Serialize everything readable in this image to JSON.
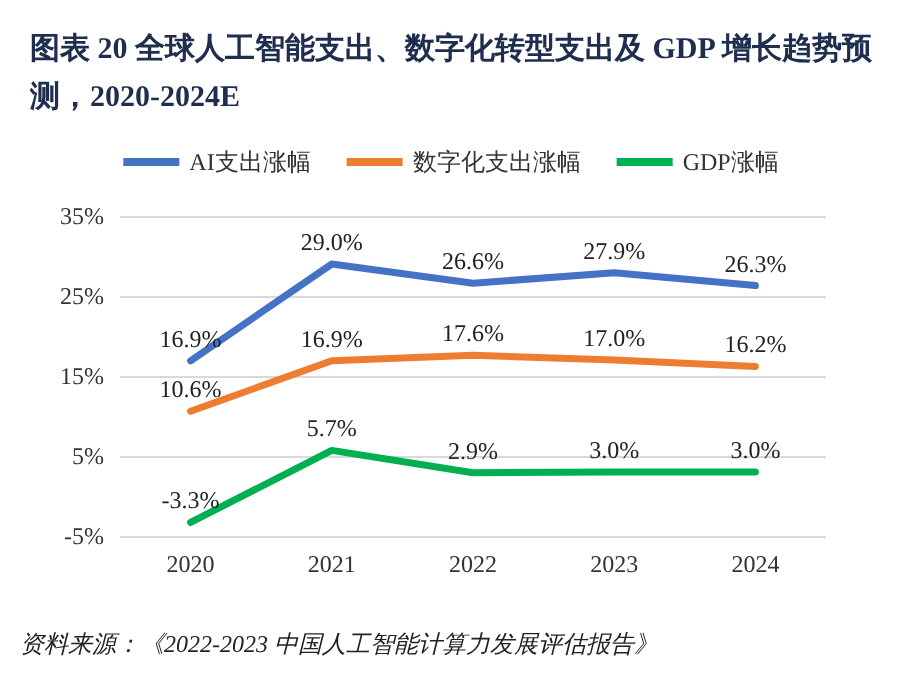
{
  "chart_data": {
    "type": "line",
    "title": "图表 20 全球人工智能支出、数字化转型支出及 GDP 增长趋势预测，2020-2024E",
    "categories": [
      "2020",
      "2021",
      "2022",
      "2023",
      "2024"
    ],
    "series": [
      {
        "name": "AI支出涨幅",
        "color": "#4472c4",
        "values": [
          16.9,
          29.0,
          26.6,
          27.9,
          26.3
        ],
        "value_labels": [
          "16.9%",
          "29.0%",
          "26.6%",
          "27.9%",
          "26.3%"
        ]
      },
      {
        "name": "数字化支出涨幅",
        "color": "#ed7d31",
        "values": [
          10.6,
          16.9,
          17.6,
          17.0,
          16.2
        ],
        "value_labels": [
          "10.6%",
          "16.9%",
          "17.6%",
          "17.0%",
          "16.2%"
        ]
      },
      {
        "name": "GDP涨幅",
        "color": "#00b050",
        "values": [
          -3.3,
          5.7,
          2.9,
          3.0,
          3.0
        ],
        "value_labels": [
          "-3.3%",
          "5.7%",
          "2.9%",
          "3.0%",
          "3.0%"
        ]
      }
    ],
    "ylim": [
      -5,
      35
    ],
    "yticks": [
      {
        "value": -5,
        "label": "-5%"
      },
      {
        "value": 5,
        "label": "5%"
      },
      {
        "value": 15,
        "label": "15%"
      },
      {
        "value": 25,
        "label": "25%"
      },
      {
        "value": 35,
        "label": "35%"
      }
    ],
    "grid": "y",
    "legend": "top",
    "marker": "none",
    "line_style": "solid",
    "annotations": [
      "资料来源：《2022-2023 中国人工智能计算力发展评估报告》"
    ]
  }
}
